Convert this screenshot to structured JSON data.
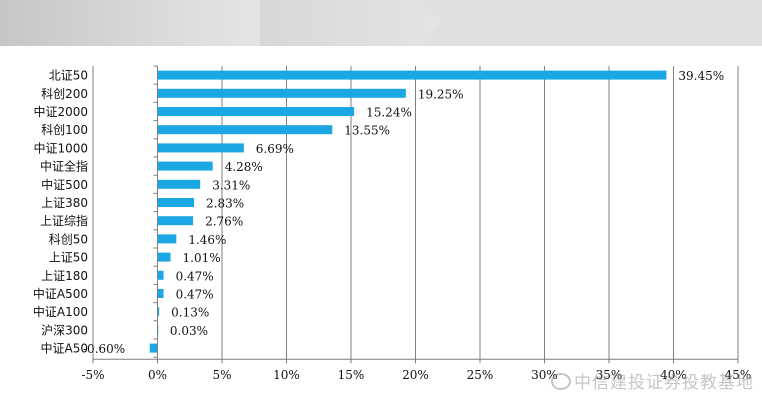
{
  "chart_data": {
    "type": "bar",
    "orientation": "horizontal",
    "categories": [
      "北证50",
      "科创200",
      "中证2000",
      "科创100",
      "中证1000",
      "中证全指",
      "中证500",
      "上证380",
      "上证综指",
      "科创50",
      "上证50",
      "上证180",
      "中证A500",
      "中证A100",
      "沪深300",
      "中证A50"
    ],
    "values": [
      39.45,
      19.25,
      15.24,
      13.55,
      6.69,
      4.28,
      3.31,
      2.83,
      2.76,
      1.46,
      1.01,
      0.47,
      0.47,
      0.13,
      0.03,
      -0.6
    ],
    "value_labels": [
      "39.45%",
      "19.25%",
      "15.24%",
      "13.55%",
      "6.69%",
      "4.28%",
      "3.31%",
      "2.83%",
      "2.76%",
      "1.46%",
      "1.01%",
      "0.47%",
      "0.47%",
      "0.13%",
      "0.03%",
      "-0.60%"
    ],
    "xlim": [
      -5,
      45
    ],
    "xticks": [
      -5,
      0,
      5,
      10,
      15,
      20,
      25,
      30,
      35,
      40,
      45
    ],
    "xtick_labels": [
      "-5%",
      "0%",
      "5%",
      "10%",
      "15%",
      "20%",
      "25%",
      "30%",
      "35%",
      "40%",
      "45%"
    ],
    "grid": "vertical",
    "title": "",
    "xlabel": "",
    "ylabel": "",
    "colors": {
      "bar": "#1ba7e4",
      "grid": "#7f7f7f",
      "axis": "#7f7f7f",
      "header_dark": "#c4c4c4",
      "header_light": "#e0e0e0"
    }
  },
  "watermark": {
    "text": "中信建投证券投教基地",
    "icon": "weibo-icon"
  }
}
